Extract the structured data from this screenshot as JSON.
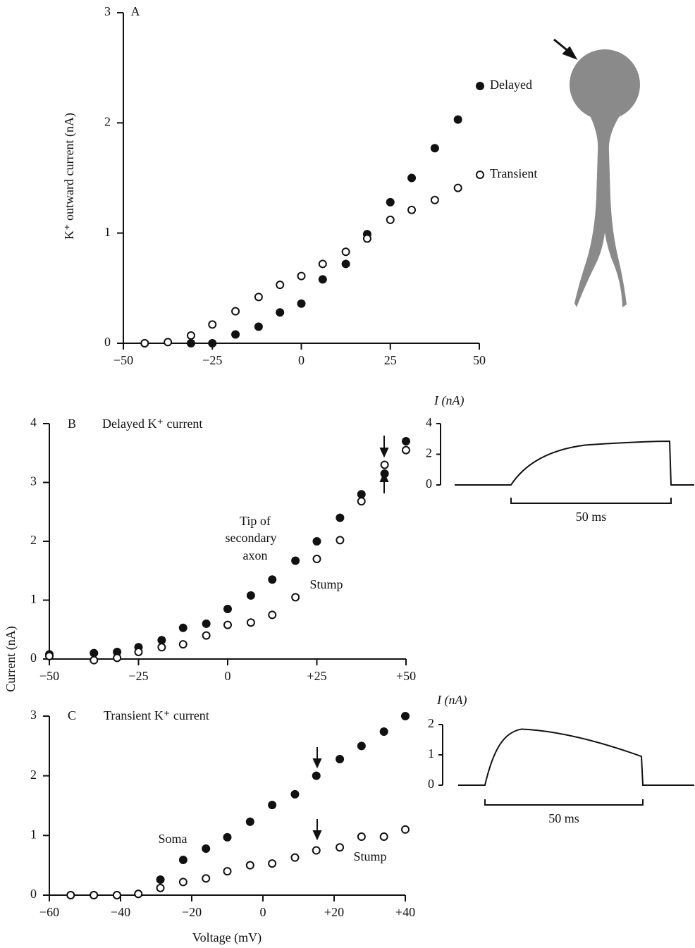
{
  "chart_data": [
    {
      "type": "scatter",
      "panel": "A",
      "ylabel": "K⁺ outward current (nA)",
      "x": [
        -44,
        -37.5,
        -31,
        -25,
        -18.5,
        -12,
        -6,
        0,
        6,
        12.5,
        18.5,
        25,
        31,
        37.5,
        44
      ],
      "series": [
        {
          "name": "Delayed",
          "color": "#111111",
          "marker": "filled",
          "values": [
            0,
            null,
            0,
            0,
            0.08,
            0.15,
            0.28,
            0.36,
            0.58,
            0.72,
            0.99,
            1.28,
            1.5,
            1.77,
            2.03
          ]
        },
        {
          "name": "Transient",
          "color": "#111111",
          "marker": "open",
          "values": [
            0,
            0.01,
            0.07,
            0.17,
            0.29,
            0.42,
            0.53,
            0.61,
            0.72,
            0.83,
            0.95,
            1.12,
            1.21,
            1.3,
            1.41
          ]
        }
      ],
      "xlim": [
        -50,
        50
      ],
      "xticks": [
        {
          "value": -50,
          "label": "−50"
        },
        {
          "value": -25,
          "label": "−25"
        },
        0,
        25,
        50
      ],
      "ylim": [
        0,
        3
      ],
      "yticks": [
        0,
        1,
        2,
        3
      ]
    },
    {
      "type": "scatter",
      "panel": "B",
      "title": "Delayed K⁺ current",
      "ylabel": "Current (nA)",
      "annotations": [
        "Tip of",
        "secondary",
        "axon",
        "Stump"
      ],
      "x": [
        -50,
        -44,
        -37.5,
        -31,
        -25,
        -18.5,
        -12.5,
        -6,
        0,
        6.5,
        12.5,
        19,
        25,
        31.5,
        37.5,
        44,
        50
      ],
      "series": [
        {
          "color": "#111111",
          "marker": "filled",
          "values": [
            0.08,
            null,
            0.1,
            0.12,
            0.2,
            0.32,
            0.53,
            0.6,
            0.85,
            1.08,
            1.35,
            1.67,
            2.0,
            2.4,
            2.8,
            3.15,
            3.7
          ]
        },
        {
          "color": "#111111",
          "marker": "open",
          "values": [
            0.05,
            null,
            -0.02,
            0.02,
            0.12,
            0.2,
            0.25,
            0.4,
            0.58,
            0.62,
            0.75,
            1.05,
            1.7,
            2.02,
            2.68,
            3.3,
            3.55
          ]
        }
      ],
      "xlim": [
        -50,
        50
      ],
      "xticks": [
        {
          "value": -50,
          "label": "−50"
        },
        {
          "value": -25,
          "label": "−25"
        },
        0,
        {
          "value": 25,
          "label": "+25"
        },
        {
          "value": 50,
          "label": "+50"
        }
      ],
      "ylim": [
        0,
        4
      ],
      "yticks": [
        0,
        1,
        2,
        3,
        4
      ],
      "inset": {
        "ylabel": "I (nA)",
        "ylim": [
          0,
          4
        ],
        "yticks": [
          0,
          2,
          4
        ],
        "scale_label": "50 ms"
      }
    },
    {
      "type": "scatter",
      "panel": "C",
      "title": "Transient K⁺ current",
      "xlabel": "Voltage (mV)",
      "annotations": [
        "Soma",
        "Stump"
      ],
      "x": [
        -54,
        -47.5,
        -41,
        -35,
        -28.8,
        -22.4,
        -16,
        -10,
        -3.6,
        2.6,
        9,
        15,
        21.6,
        27.7,
        34,
        40
      ],
      "series": [
        {
          "color": "#111111",
          "marker": "filled",
          "values": [
            0,
            0,
            0,
            0.02,
            0.26,
            0.59,
            0.78,
            0.97,
            1.23,
            1.51,
            1.69,
            2.0,
            2.28,
            2.5,
            2.74,
            3.0
          ]
        },
        {
          "color": "#111111",
          "marker": "open",
          "values": [
            0,
            0,
            0,
            0.02,
            0.12,
            0.22,
            0.28,
            0.4,
            0.5,
            0.53,
            0.63,
            0.75,
            0.8,
            0.98,
            0.98,
            1.1
          ]
        }
      ],
      "xlim": [
        -60,
        40
      ],
      "xticks": [
        {
          "value": -60,
          "label": "−60"
        },
        {
          "value": -40,
          "label": "−40"
        },
        {
          "value": -20,
          "label": "−20"
        },
        0,
        {
          "value": 20,
          "label": "+20"
        },
        {
          "value": 40,
          "label": "+40"
        }
      ],
      "ylim": [
        0,
        3
      ],
      "yticks": [
        0,
        1,
        2,
        3
      ],
      "inset": {
        "ylabel": "I (nA)",
        "ylim": [
          0,
          2
        ],
        "yticks": [
          0,
          1,
          2
        ],
        "scale_label": "50 ms"
      }
    }
  ]
}
